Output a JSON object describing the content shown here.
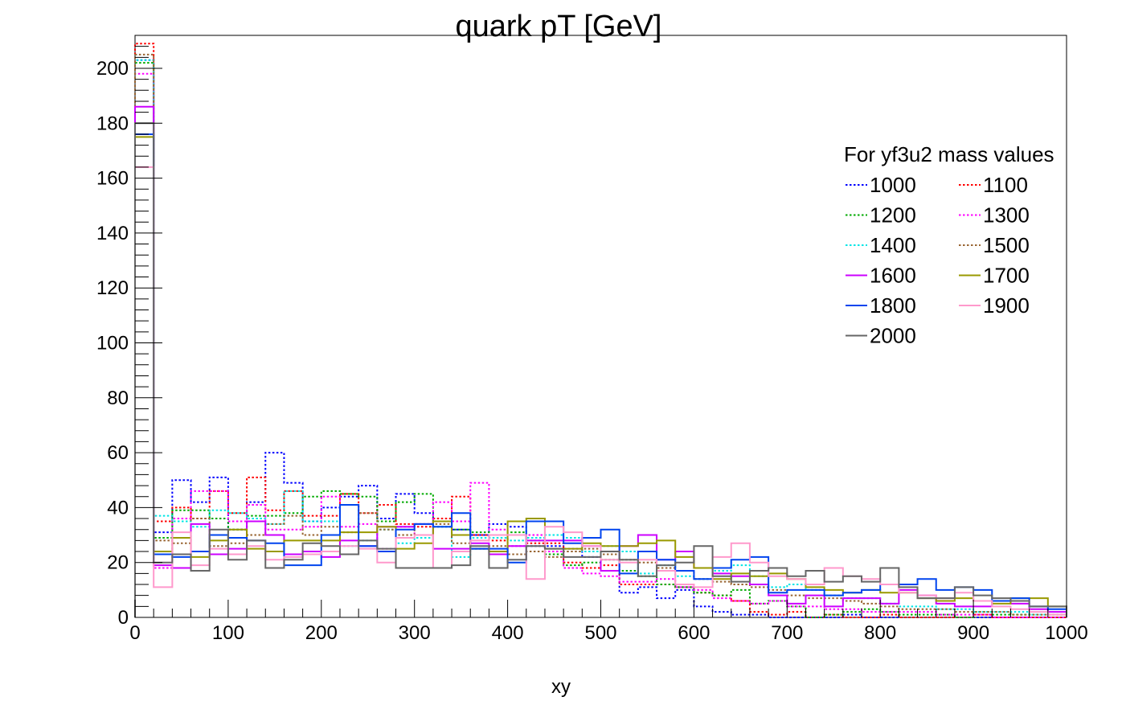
{
  "chart_data": {
    "type": "line",
    "title": "quark pT [GeV]",
    "xlabel": "xy",
    "ylabel": "",
    "xlim": [
      0,
      1000
    ],
    "ylim": [
      0,
      212
    ],
    "bin_width": 20,
    "x_ticks": [
      "0",
      "100",
      "200",
      "300",
      "400",
      "500",
      "600",
      "700",
      "800",
      "900",
      "1000"
    ],
    "y_ticks": [
      "0",
      "20",
      "40",
      "60",
      "80",
      "100",
      "120",
      "140",
      "160",
      "180",
      "200"
    ],
    "grid": false,
    "legend": {
      "title": "For yf3u2 mass values",
      "position": "top-right",
      "columns": 2
    },
    "series": [
      {
        "name": "1000",
        "color": "#0000ff",
        "style": "dotted",
        "values": [
          203,
          31,
          50,
          42,
          51,
          32,
          42,
          60,
          49,
          35,
          40,
          44,
          48,
          36,
          45,
          38,
          35,
          32,
          30,
          34,
          33,
          26,
          26,
          25,
          22,
          17,
          9,
          11,
          7,
          10,
          4,
          2,
          1,
          1,
          0,
          0,
          0,
          0,
          1,
          0,
          0,
          0,
          0,
          0,
          0,
          0,
          0,
          0,
          0,
          0
        ]
      },
      {
        "name": "1100",
        "color": "#ff0000",
        "style": "dotted",
        "values": [
          209,
          35,
          40,
          36,
          46,
          38,
          51,
          39,
          46,
          37,
          37,
          45,
          38,
          41,
          34,
          33,
          36,
          44,
          30,
          28,
          30,
          27,
          27,
          20,
          18,
          19,
          12,
          12,
          12,
          11,
          9,
          8,
          6,
          2,
          1,
          2,
          0,
          1,
          0,
          0,
          1,
          0,
          0,
          0,
          0,
          1,
          0,
          0,
          0,
          0
        ]
      },
      {
        "name": "1200",
        "color": "#00aa00",
        "style": "dotted",
        "values": [
          202,
          29,
          39,
          39,
          36,
          32,
          37,
          37,
          38,
          44,
          46,
          45,
          44,
          35,
          42,
          45,
          33,
          32,
          31,
          30,
          31,
          28,
          23,
          19,
          20,
          21,
          17,
          15,
          12,
          11,
          9,
          8,
          10,
          5,
          6,
          4,
          0,
          1,
          2,
          3,
          2,
          1,
          1,
          1,
          0,
          2,
          1,
          1,
          0,
          0
        ]
      },
      {
        "name": "1300",
        "color": "#ff00ff",
        "style": "dotted",
        "values": [
          198,
          18,
          36,
          46,
          46,
          35,
          41,
          32,
          32,
          33,
          44,
          33,
          34,
          25,
          33,
          30,
          42,
          35,
          49,
          32,
          26,
          30,
          24,
          18,
          16,
          15,
          13,
          13,
          14,
          11,
          10,
          7,
          6,
          5,
          6,
          4,
          4,
          3,
          3,
          2,
          2,
          2,
          2,
          1,
          1,
          1,
          0,
          0,
          0,
          0
        ]
      },
      {
        "name": "1400",
        "color": "#00e5e5",
        "style": "dotted",
        "values": [
          203,
          37,
          35,
          33,
          39,
          38,
          36,
          34,
          46,
          35,
          35,
          26,
          28,
          32,
          27,
          29,
          33,
          22,
          29,
          29,
          28,
          29,
          30,
          29,
          24,
          26,
          24,
          16,
          19,
          15,
          14,
          17,
          19,
          15,
          11,
          12,
          10,
          8,
          7,
          7,
          5,
          4,
          4,
          3,
          3,
          2,
          2,
          2,
          1,
          1
        ]
      },
      {
        "name": "1500",
        "color": "#996633",
        "style": "dotted",
        "values": [
          205,
          28,
          27,
          36,
          26,
          27,
          30,
          34,
          37,
          30,
          33,
          31,
          38,
          32,
          30,
          34,
          34,
          27,
          25,
          26,
          23,
          24,
          22,
          24,
          25,
          23,
          21,
          20,
          18,
          17,
          14,
          13,
          12,
          11,
          10,
          8,
          7,
          7,
          6,
          5,
          4,
          3,
          3,
          3,
          2,
          2,
          2,
          1,
          1,
          1
        ]
      },
      {
        "name": "1600",
        "color": "#cc00ff",
        "style": "solid",
        "values": [
          186,
          19,
          18,
          34,
          23,
          25,
          35,
          30,
          23,
          24,
          22,
          28,
          26,
          33,
          33,
          34,
          25,
          25,
          27,
          23,
          26,
          28,
          28,
          28,
          26,
          17,
          26,
          30,
          21,
          24,
          18,
          16,
          15,
          12,
          8,
          5,
          8,
          4,
          7,
          7,
          5,
          10,
          8,
          5,
          4,
          4,
          6,
          5,
          3,
          2
        ]
      },
      {
        "name": "1700",
        "color": "#999900",
        "style": "solid",
        "values": [
          175,
          24,
          29,
          22,
          28,
          32,
          25,
          24,
          28,
          28,
          28,
          31,
          31,
          33,
          25,
          27,
          35,
          30,
          25,
          24,
          35,
          36,
          25,
          25,
          27,
          26,
          26,
          27,
          28,
          22,
          18,
          14,
          16,
          15,
          16,
          14,
          11,
          10,
          9,
          10,
          9,
          9,
          7,
          6,
          7,
          6,
          5,
          7,
          7,
          4
        ]
      },
      {
        "name": "1800",
        "color": "#0044ee",
        "style": "solid",
        "values": [
          176,
          23,
          22,
          24,
          30,
          29,
          28,
          27,
          19,
          19,
          30,
          41,
          26,
          24,
          32,
          34,
          33,
          38,
          25,
          25,
          20,
          35,
          35,
          27,
          29,
          32,
          16,
          24,
          21,
          17,
          14,
          18,
          21,
          22,
          9,
          10,
          10,
          8,
          9,
          10,
          12,
          12,
          14,
          10,
          11,
          10,
          6,
          7,
          4,
          3
        ]
      },
      {
        "name": "1900",
        "color": "#ff99cc",
        "style": "solid",
        "values": [
          164,
          11,
          31,
          19,
          25,
          23,
          26,
          21,
          22,
          23,
          24,
          26,
          25,
          20,
          29,
          30,
          18,
          24,
          28,
          30,
          30,
          14,
          33,
          31,
          26,
          21,
          20,
          21,
          17,
          12,
          11,
          22,
          27,
          20,
          15,
          14,
          12,
          18,
          15,
          14,
          12,
          9,
          8,
          7,
          9,
          6,
          4,
          3,
          2,
          1
        ]
      },
      {
        "name": "2000",
        "color": "#666666",
        "style": "solid",
        "values": [
          180,
          20,
          23,
          17,
          32,
          21,
          28,
          18,
          21,
          27,
          26,
          23,
          28,
          25,
          18,
          18,
          18,
          19,
          26,
          18,
          21,
          26,
          25,
          22,
          22,
          24,
          21,
          15,
          19,
          20,
          26,
          15,
          13,
          17,
          18,
          15,
          17,
          13,
          15,
          13,
          18,
          11,
          7,
          7,
          11,
          8,
          7,
          6,
          4,
          4
        ]
      }
    ]
  }
}
